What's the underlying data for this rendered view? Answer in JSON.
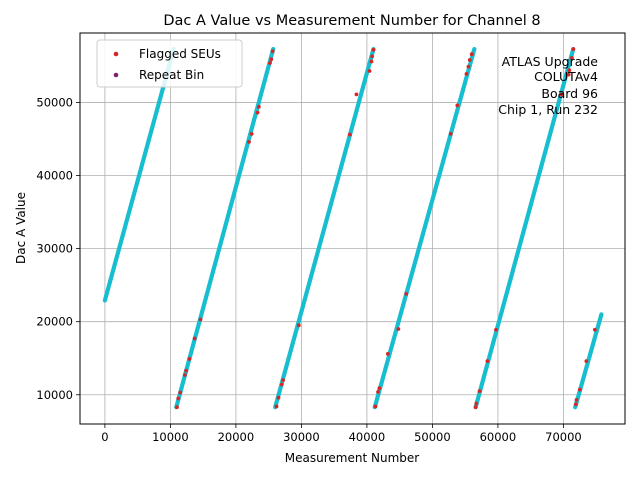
{
  "chart_data": {
    "type": "scatter",
    "title": "Dac A Value vs Measurement Number for Channel 8",
    "xlabel": "Measurement Number",
    "ylabel": "Dac A Value",
    "xlim": [
      -3800,
      79400
    ],
    "ylim": [
      6000,
      59500
    ],
    "x_ticks": [
      0,
      10000,
      20000,
      30000,
      40000,
      50000,
      60000,
      70000
    ],
    "x_tick_labels": [
      "0",
      "10000",
      "20000",
      "30000",
      "40000",
      "50000",
      "60000",
      "70000"
    ],
    "y_ticks": [
      10000,
      20000,
      30000,
      40000,
      50000
    ],
    "y_tick_labels": [
      "10000",
      "20000",
      "30000",
      "40000",
      "50000"
    ],
    "grid": true,
    "legend_position": "upper-left",
    "annotation": [
      "ATLAS Upgrade",
      "COLUTAv4",
      "Board 96",
      "Chip 1, Run 232"
    ],
    "annotation_position": "upper-right",
    "main_series": {
      "color": "#17becf",
      "segments": [
        {
          "x": [
            0,
            10500
          ],
          "y": [
            22900,
            57300
          ]
        },
        {
          "x": [
            10900,
            25700
          ],
          "y": [
            8300,
            57300
          ]
        },
        {
          "x": [
            26000,
            41000
          ],
          "y": [
            8300,
            57300
          ]
        },
        {
          "x": [
            41200,
            56400
          ],
          "y": [
            8300,
            57300
          ]
        },
        {
          "x": [
            56600,
            71500
          ],
          "y": [
            8300,
            57300
          ]
        },
        {
          "x": [
            71800,
            75800
          ],
          "y": [
            8300,
            21000
          ]
        }
      ]
    },
    "series": [
      {
        "name": "Flagged SEUs",
        "color": "#d62728",
        "points": [
          [
            11000,
            8300
          ],
          [
            11200,
            9500
          ],
          [
            11500,
            10300
          ],
          [
            12200,
            12700
          ],
          [
            12400,
            13300
          ],
          [
            12900,
            14900
          ],
          [
            13700,
            17700
          ],
          [
            14600,
            20300
          ],
          [
            22000,
            44600
          ],
          [
            22400,
            45700
          ],
          [
            23300,
            48600
          ],
          [
            23500,
            49400
          ],
          [
            25200,
            55400
          ],
          [
            25400,
            55900
          ],
          [
            25600,
            57000
          ],
          [
            26200,
            8400
          ],
          [
            26500,
            9600
          ],
          [
            27000,
            11400
          ],
          [
            27200,
            12000
          ],
          [
            29600,
            19500
          ],
          [
            37400,
            45600
          ],
          [
            38400,
            51100
          ],
          [
            40400,
            54300
          ],
          [
            40700,
            55600
          ],
          [
            40800,
            56300
          ],
          [
            41000,
            57200
          ],
          [
            41300,
            8400
          ],
          [
            41700,
            10400
          ],
          [
            41900,
            10900
          ],
          [
            43200,
            15600
          ],
          [
            44800,
            19000
          ],
          [
            46000,
            23800
          ],
          [
            52800,
            45700
          ],
          [
            53800,
            49600
          ],
          [
            55200,
            53900
          ],
          [
            55500,
            54900
          ],
          [
            55700,
            55800
          ],
          [
            56000,
            56600
          ],
          [
            56600,
            8300
          ],
          [
            56700,
            8800
          ],
          [
            57200,
            10500
          ],
          [
            58400,
            14600
          ],
          [
            59700,
            18900
          ],
          [
            69700,
            51100
          ],
          [
            70800,
            53800
          ],
          [
            70900,
            54400
          ],
          [
            71300,
            56100
          ],
          [
            71500,
            57300
          ],
          [
            71900,
            8700
          ],
          [
            72000,
            9300
          ],
          [
            72500,
            10700
          ],
          [
            73500,
            14600
          ],
          [
            74800,
            18900
          ]
        ]
      },
      {
        "name": "Repeat Bin",
        "color": "#7f1f6f",
        "points": []
      }
    ]
  }
}
